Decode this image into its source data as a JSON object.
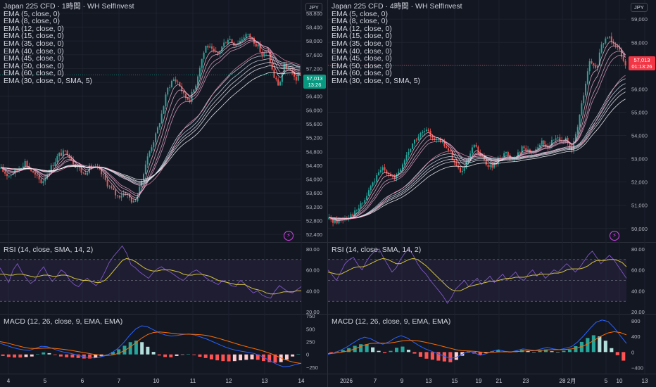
{
  "chart_data": [
    {
      "type": "candlestick",
      "title": "Japan 225 CFD · 1時間 · WH SelfInvest",
      "currency": "JPY",
      "last_price": "57,013",
      "countdown": "13:26",
      "ema_legend": [
        "EMA (5, close, 0)",
        "EMA (8, close, 0)",
        "EMA (12, close, 0)",
        "EMA (15, close, 0)",
        "EMA (35, close, 0)",
        "EMA (40, close, 0)",
        "EMA (45, close, 0)",
        "EMA (50, close, 0)",
        "EMA (60, close, 0)",
        "EMA (30, close, 0, SMA, 5)"
      ],
      "price_axis": [
        "58,800",
        "58,400",
        "58,000",
        "57,600",
        "57,200",
        "56,800",
        "56,400",
        "56,000",
        "55,600",
        "55,200",
        "54,800",
        "54,400",
        "54,000",
        "53,600",
        "53,200",
        "52,800",
        "52,400"
      ],
      "ylim": [
        52300,
        58900
      ],
      "date_axis": [
        "4",
        "5",
        "6",
        "7",
        "10",
        "11",
        "12",
        "13",
        "14"
      ],
      "price_path": [
        [
          0,
          54300
        ],
        [
          3,
          54100
        ],
        [
          6,
          54250
        ],
        [
          9,
          54500
        ],
        [
          12,
          54150
        ],
        [
          15,
          53900
        ],
        [
          18,
          54300
        ],
        [
          21,
          54700
        ],
        [
          24,
          54800
        ],
        [
          27,
          54400
        ],
        [
          30,
          54150
        ],
        [
          33,
          54400
        ],
        [
          36,
          54200
        ],
        [
          39,
          53800
        ],
        [
          42,
          53500
        ],
        [
          45,
          53600
        ],
        [
          48,
          53300
        ],
        [
          50,
          53700
        ],
        [
          52,
          54400
        ],
        [
          54,
          54900
        ],
        [
          56,
          55300
        ],
        [
          58,
          55900
        ],
        [
          60,
          56600
        ],
        [
          62,
          56900
        ],
        [
          64,
          56800
        ],
        [
          66,
          56400
        ],
        [
          68,
          56300
        ],
        [
          70,
          56700
        ],
        [
          72,
          57400
        ],
        [
          74,
          57900
        ],
        [
          76,
          57700
        ],
        [
          78,
          57600
        ],
        [
          80,
          57900
        ],
        [
          82,
          58100
        ],
        [
          84,
          57900
        ],
        [
          86,
          58000
        ],
        [
          88,
          58200
        ],
        [
          90,
          58100
        ],
        [
          92,
          57900
        ],
        [
          94,
          57600
        ],
        [
          96,
          57700
        ],
        [
          98,
          57000
        ],
        [
          100,
          56700
        ],
        [
          102,
          57300
        ],
        [
          104,
          57100
        ],
        [
          106,
          56900
        ],
        [
          108,
          57013
        ]
      ],
      "rsi": {
        "label": "RSI (14, close, SMA, 14, 2)",
        "axis": [
          "80.00",
          "60.00",
          "40.00",
          "20.00"
        ],
        "ylim": [
          18,
          86
        ],
        "bands": [
          70,
          30
        ],
        "values": [
          62,
          55,
          48,
          60,
          66,
          58,
          52,
          47,
          50,
          58,
          63,
          55,
          49,
          54,
          60,
          57,
          50,
          46,
          44,
          49,
          52,
          48,
          45,
          50,
          58,
          67,
          73,
          78,
          83,
          76,
          65,
          62,
          58,
          55,
          52,
          57,
          61,
          63,
          60,
          58,
          55,
          52,
          50,
          54,
          58,
          60,
          57,
          53,
          50,
          48,
          46,
          50,
          48,
          45,
          44,
          50,
          47,
          42,
          38,
          40,
          36,
          34,
          33,
          40,
          45,
          42,
          39,
          38,
          41,
          44
        ],
        "signal": [
          56,
          56,
          55,
          55,
          56,
          56,
          55,
          54,
          53,
          54,
          55,
          55,
          54,
          54,
          55,
          55,
          54,
          52,
          51,
          50,
          50,
          49,
          48,
          48,
          50,
          54,
          59,
          64,
          69,
          71,
          70,
          68,
          65,
          62,
          60,
          59,
          59,
          60,
          60,
          60,
          59,
          58,
          56,
          55,
          55,
          56,
          56,
          55,
          54,
          52,
          50,
          49,
          48,
          47,
          46,
          46,
          46,
          44,
          42,
          41,
          40,
          38,
          37,
          37,
          38,
          39,
          39,
          39,
          40,
          40
        ]
      },
      "macd": {
        "label": "MACD (12, 26, close, 9, EMA, EMA)",
        "axis": [
          "750",
          "500",
          "250",
          "0",
          "−250"
        ],
        "ylim": [
          -320,
          780
        ],
        "macd": [
          220,
          180,
          140,
          110,
          90,
          80,
          120,
          160,
          150,
          110,
          70,
          40,
          20,
          -10,
          -40,
          -60,
          -70,
          -50,
          -20,
          40,
          120,
          240,
          380,
          500,
          560,
          540,
          480,
          420,
          380,
          360,
          370,
          390,
          400,
          380,
          340,
          300,
          250,
          200,
          150,
          110,
          80,
          60,
          40,
          20,
          -20,
          -80,
          -140,
          -200,
          -240,
          -230,
          -200,
          -170
        ],
        "signal": [
          250,
          230,
          200,
          170,
          140,
          120,
          115,
          120,
          125,
          120,
          110,
          95,
          80,
          60,
          40,
          20,
          0,
          -15,
          -20,
          -10,
          20,
          70,
          140,
          230,
          320,
          390,
          430,
          440,
          430,
          415,
          400,
          395,
          395,
          392,
          385,
          370,
          345,
          315,
          280,
          245,
          210,
          175,
          145,
          115,
          85,
          50,
          10,
          -40,
          -90,
          -130,
          -160,
          -175
        ],
        "hist": [
          -30,
          -50,
          -60,
          -60,
          -50,
          -40,
          5,
          40,
          25,
          -10,
          -40,
          -55,
          -60,
          -70,
          -80,
          -80,
          -70,
          -35,
          0,
          50,
          100,
          170,
          240,
          270,
          240,
          150,
          50,
          -20,
          -50,
          -55,
          -30,
          -5,
          5,
          -12,
          -45,
          -70,
          -95,
          -115,
          -130,
          -135,
          -130,
          -115,
          -105,
          -95,
          -105,
          -130,
          -150,
          -160,
          -150,
          -100,
          -40,
          5
        ]
      }
    },
    {
      "type": "candlestick",
      "title": "Japan 225 CFD · 4時間 · WH SelfInvest",
      "currency": "JPY",
      "last_price": "57,013",
      "countdown": "01:13:26",
      "ema_legend": [
        "EMA (5, close, 0)",
        "EMA (8, close, 0)",
        "EMA (12, close, 0)",
        "EMA (15, close, 0)",
        "EMA (35, close, 0)",
        "EMA (40, close, 0)",
        "EMA (45, close, 0)",
        "EMA (50, close, 0)",
        "EMA (60, close, 0)",
        "EMA (30, close, 0, SMA, 5)"
      ],
      "price_axis": [
        "59,000",
        "58,000",
        "57,000",
        "56,000",
        "55,000",
        "54,000",
        "53,000",
        "52,000",
        "51,000",
        "50,000"
      ],
      "ylim": [
        49600,
        59400
      ],
      "date_axis": [
        "2026",
        "7",
        "9",
        "13",
        "15",
        "19",
        "21",
        "23",
        "28",
        "2月",
        "5",
        "10",
        "13"
      ],
      "price_path": [
        [
          0,
          50400
        ],
        [
          3,
          50300
        ],
        [
          6,
          50500
        ],
        [
          9,
          50700
        ],
        [
          12,
          51200
        ],
        [
          14,
          51800
        ],
        [
          16,
          52200
        ],
        [
          18,
          52600
        ],
        [
          20,
          52400
        ],
        [
          22,
          52100
        ],
        [
          24,
          52600
        ],
        [
          26,
          53200
        ],
        [
          28,
          53700
        ],
        [
          30,
          54000
        ],
        [
          32,
          54200
        ],
        [
          34,
          54000
        ],
        [
          36,
          53800
        ],
        [
          38,
          53600
        ],
        [
          40,
          53300
        ],
        [
          42,
          52700
        ],
        [
          44,
          52400
        ],
        [
          46,
          52900
        ],
        [
          48,
          53600
        ],
        [
          50,
          53100
        ],
        [
          52,
          52800
        ],
        [
          54,
          52600
        ],
        [
          56,
          53000
        ],
        [
          58,
          53300
        ],
        [
          60,
          53000
        ],
        [
          62,
          53200
        ],
        [
          64,
          53500
        ],
        [
          66,
          53300
        ],
        [
          68,
          53400
        ],
        [
          70,
          53700
        ],
        [
          72,
          53500
        ],
        [
          74,
          53800
        ],
        [
          76,
          53900
        ],
        [
          78,
          53800
        ],
        [
          80,
          53300
        ],
        [
          82,
          54400
        ],
        [
          84,
          55800
        ],
        [
          86,
          57200
        ],
        [
          88,
          56800
        ],
        [
          90,
          57900
        ],
        [
          92,
          58300
        ],
        [
          94,
          58000
        ],
        [
          96,
          57600
        ],
        [
          98,
          57013
        ]
      ],
      "rsi": {
        "label": "RSI (14, close, SMA, 14, 2)",
        "axis": [
          "80.00",
          "60.00",
          "40.00",
          "20.00"
        ],
        "ylim": [
          18,
          86
        ],
        "bands": [
          70,
          30
        ],
        "values": [
          60,
          55,
          50,
          58,
          66,
          70,
          72,
          65,
          60,
          68,
          74,
          78,
          80,
          72,
          65,
          58,
          62,
          70,
          76,
          80,
          74,
          66,
          60,
          56,
          50,
          45,
          40,
          35,
          28,
          34,
          42,
          46,
          50,
          44,
          48,
          52,
          46,
          50,
          54,
          48,
          52,
          56,
          50,
          54,
          58,
          52,
          50,
          56,
          60,
          54,
          58,
          52,
          56,
          60,
          58,
          62,
          66,
          62,
          58,
          62,
          68,
          74,
          78,
          72,
          66,
          70,
          74,
          70,
          64,
          58,
          52
        ],
        "signal": [
          58,
          57,
          56,
          56,
          58,
          60,
          62,
          63,
          63,
          64,
          66,
          68,
          70,
          71,
          70,
          68,
          66,
          66,
          68,
          70,
          71,
          70,
          67,
          64,
          60,
          56,
          52,
          48,
          44,
          41,
          40,
          40,
          42,
          44,
          45,
          46,
          47,
          48,
          49,
          49,
          50,
          51,
          52,
          52,
          53,
          53,
          53,
          54,
          55,
          55,
          56,
          56,
          56,
          57,
          57,
          58,
          60,
          61,
          61,
          61,
          62,
          64,
          67,
          69,
          69,
          69,
          70,
          70,
          69,
          67,
          63
        ]
      },
      "macd": {
        "label": "MACD (12, 26, close, 9, EMA, EMA)",
        "axis": [
          "800",
          "400",
          "0",
          "−400"
        ],
        "ylim": [
          -480,
          960
        ],
        "macd": [
          -60,
          -20,
          40,
          120,
          220,
          320,
          380,
          340,
          260,
          200,
          260,
          360,
          420,
          360,
          260,
          160,
          80,
          20,
          -40,
          -100,
          -160,
          -140,
          -60,
          20,
          -20,
          -80,
          -40,
          20,
          60,
          20,
          0,
          40,
          80,
          60,
          40,
          80,
          120,
          80,
          60,
          100,
          140,
          260,
          420,
          600,
          760,
          820,
          780,
          620,
          420,
          220
        ],
        "signal": [
          -40,
          -30,
          -10,
          20,
          60,
          120,
          180,
          220,
          230,
          225,
          230,
          250,
          280,
          300,
          300,
          280,
          250,
          215,
          180,
          140,
          100,
          60,
          35,
          30,
          20,
          0,
          -10,
          -5,
          5,
          8,
          6,
          12,
          25,
          32,
          35,
          42,
          55,
          60,
          60,
          68,
          80,
          110,
          160,
          240,
          330,
          420,
          490,
          520,
          500,
          440
        ],
        "hist": [
          -20,
          10,
          50,
          100,
          160,
          200,
          200,
          120,
          30,
          -25,
          30,
          110,
          140,
          60,
          -40,
          -120,
          -170,
          -195,
          -220,
          -240,
          -260,
          -200,
          -95,
          -10,
          -40,
          -80,
          -30,
          25,
          55,
          12,
          -6,
          28,
          55,
          28,
          5,
          38,
          65,
          20,
          0,
          32,
          60,
          150,
          260,
          360,
          430,
          400,
          290,
          100,
          -80,
          -220
        ]
      }
    }
  ]
}
